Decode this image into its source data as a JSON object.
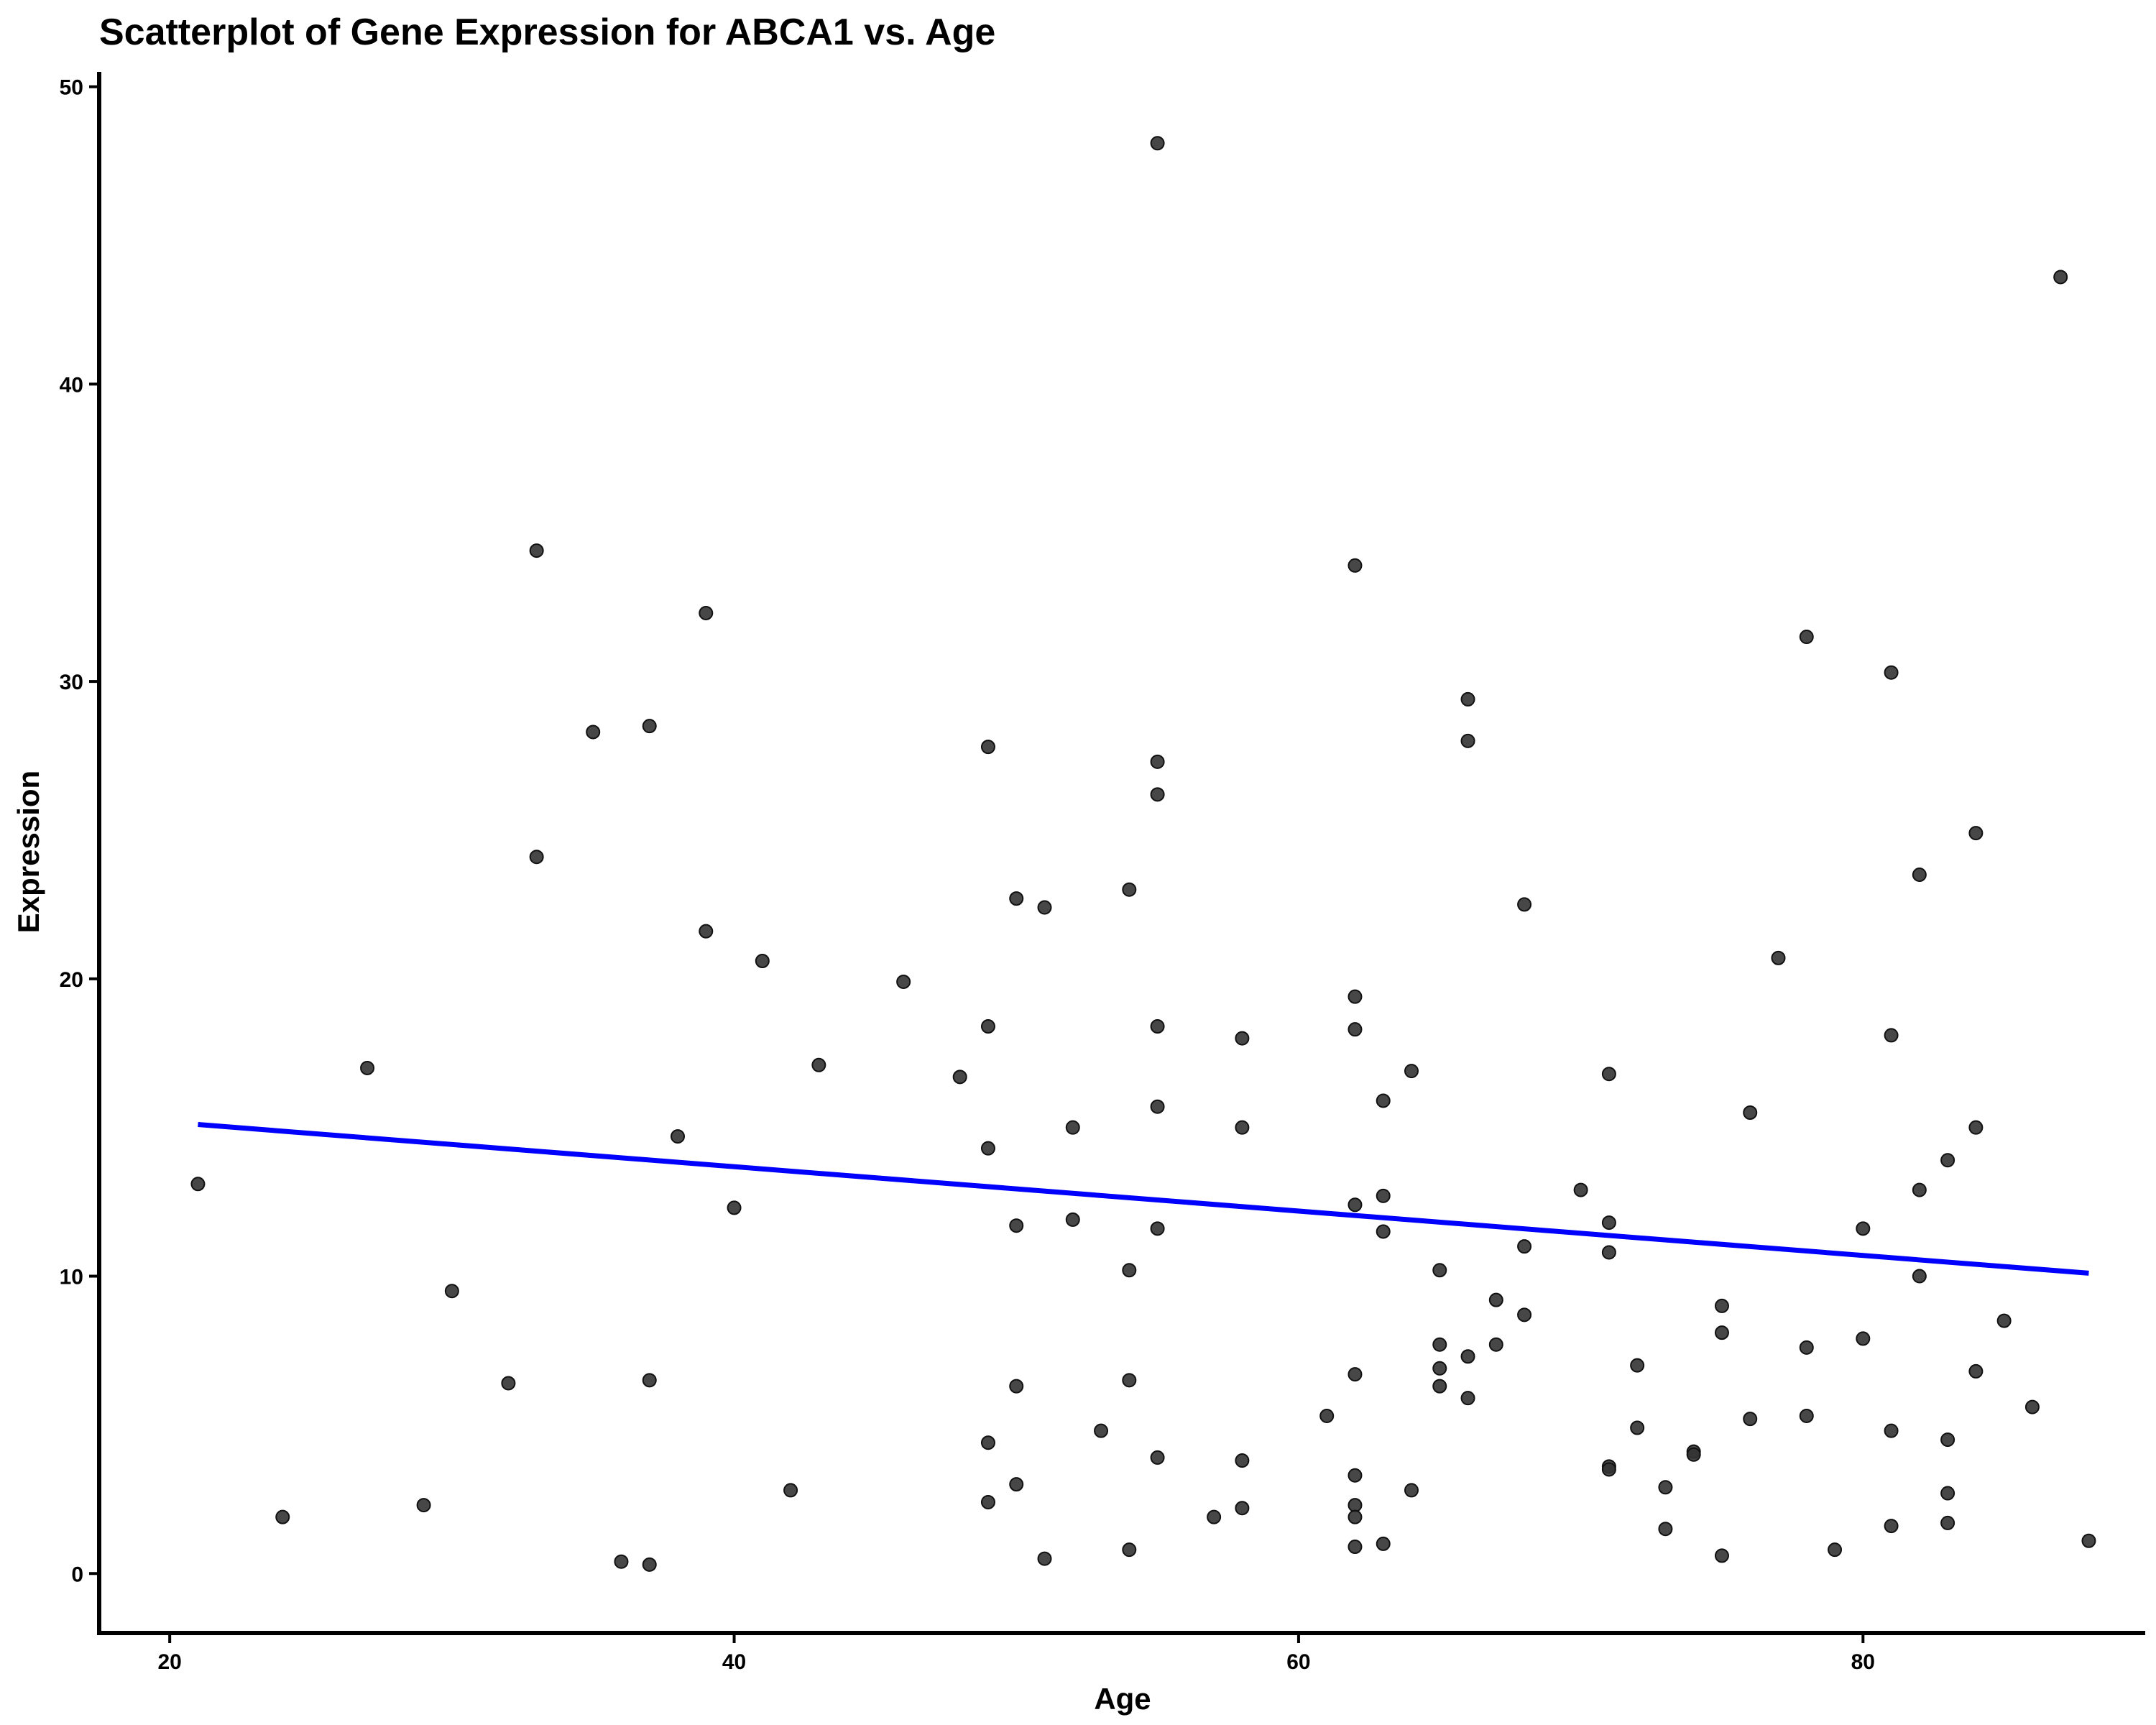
{
  "chart_data": {
    "type": "scatter",
    "title": "Scatterplot of Gene Expression for ABCA1 vs. Age",
    "xlabel": "Age",
    "ylabel": "Expression",
    "xlim": [
      17.5,
      90
    ],
    "ylim": [
      -2,
      50.5
    ],
    "x_ticks": [
      20,
      40,
      60,
      80
    ],
    "y_ticks": [
      0,
      10,
      20,
      30,
      40,
      50
    ],
    "x_tick_labels": [
      "20",
      "40",
      "60",
      "80"
    ],
    "y_tick_labels": [
      "0",
      "10",
      "20",
      "30",
      "40",
      "50"
    ],
    "grid": false,
    "legend": "none",
    "point_color": "#333333",
    "trend_color": "#0000ff",
    "trendline": {
      "x": [
        21,
        88
      ],
      "y": [
        15.1,
        10.1
      ]
    },
    "points": [
      [
        21,
        13.1
      ],
      [
        24,
        1.9
      ],
      [
        27,
        17.0
      ],
      [
        29,
        2.3
      ],
      [
        30,
        9.5
      ],
      [
        32,
        6.4
      ],
      [
        33,
        34.4
      ],
      [
        33,
        24.1
      ],
      [
        35,
        28.3
      ],
      [
        36,
        0.4
      ],
      [
        37,
        28.5
      ],
      [
        37,
        6.5
      ],
      [
        37,
        0.3
      ],
      [
        38,
        14.7
      ],
      [
        39,
        32.3
      ],
      [
        39,
        21.6
      ],
      [
        40,
        12.3
      ],
      [
        41,
        20.6
      ],
      [
        42,
        2.8
      ],
      [
        43,
        17.1
      ],
      [
        46,
        19.9
      ],
      [
        48,
        16.7
      ],
      [
        49,
        27.8
      ],
      [
        49,
        18.4
      ],
      [
        49,
        14.3
      ],
      [
        49,
        4.4
      ],
      [
        49,
        2.4
      ],
      [
        50,
        22.7
      ],
      [
        50,
        11.7
      ],
      [
        50,
        6.3
      ],
      [
        50,
        3.0
      ],
      [
        51,
        22.4
      ],
      [
        51,
        0.5
      ],
      [
        52,
        15.0
      ],
      [
        52,
        11.9
      ],
      [
        53,
        4.8
      ],
      [
        54,
        23.0
      ],
      [
        54,
        10.2
      ],
      [
        54,
        6.5
      ],
      [
        54,
        0.8
      ],
      [
        55,
        48.1
      ],
      [
        55,
        27.3
      ],
      [
        55,
        26.2
      ],
      [
        55,
        18.4
      ],
      [
        55,
        15.7
      ],
      [
        55,
        11.6
      ],
      [
        55,
        3.9
      ],
      [
        57,
        1.9
      ],
      [
        58,
        18.0
      ],
      [
        58,
        15.0
      ],
      [
        58,
        3.8
      ],
      [
        58,
        2.2
      ],
      [
        61,
        5.3
      ],
      [
        62,
        33.9
      ],
      [
        62,
        19.4
      ],
      [
        62,
        18.3
      ],
      [
        62,
        12.4
      ],
      [
        62,
        6.7
      ],
      [
        62,
        3.3
      ],
      [
        62,
        2.3
      ],
      [
        62,
        1.9
      ],
      [
        62,
        0.9
      ],
      [
        63,
        15.9
      ],
      [
        63,
        12.7
      ],
      [
        63,
        11.5
      ],
      [
        63,
        1.0
      ],
      [
        64,
        16.9
      ],
      [
        64,
        2.8
      ],
      [
        65,
        10.2
      ],
      [
        65,
        7.7
      ],
      [
        65,
        6.9
      ],
      [
        65,
        6.3
      ],
      [
        66,
        29.4
      ],
      [
        66,
        28.0
      ],
      [
        66,
        7.3
      ],
      [
        66,
        5.9
      ],
      [
        67,
        9.2
      ],
      [
        67,
        7.7
      ],
      [
        68,
        22.5
      ],
      [
        68,
        11.0
      ],
      [
        68,
        8.7
      ],
      [
        70,
        12.9
      ],
      [
        71,
        16.8
      ],
      [
        71,
        11.8
      ],
      [
        71,
        10.8
      ],
      [
        71,
        3.6
      ],
      [
        71,
        3.5
      ],
      [
        72,
        7.0
      ],
      [
        72,
        4.9
      ],
      [
        73,
        2.9
      ],
      [
        73,
        1.5
      ],
      [
        74,
        4.1
      ],
      [
        74,
        4.0
      ],
      [
        75,
        9.0
      ],
      [
        75,
        8.1
      ],
      [
        75,
        0.6
      ],
      [
        76,
        15.5
      ],
      [
        76,
        5.2
      ],
      [
        77,
        20.7
      ],
      [
        78,
        31.5
      ],
      [
        78,
        7.6
      ],
      [
        78,
        5.3
      ],
      [
        79,
        0.8
      ],
      [
        80,
        11.6
      ],
      [
        80,
        7.9
      ],
      [
        81,
        30.3
      ],
      [
        81,
        18.1
      ],
      [
        81,
        4.8
      ],
      [
        81,
        1.6
      ],
      [
        82,
        23.5
      ],
      [
        82,
        12.9
      ],
      [
        82,
        10.0
      ],
      [
        83,
        13.9
      ],
      [
        83,
        4.5
      ],
      [
        83,
        2.7
      ],
      [
        83,
        1.7
      ],
      [
        84,
        24.9
      ],
      [
        84,
        15.0
      ],
      [
        84,
        6.8
      ],
      [
        85,
        8.5
      ],
      [
        86,
        5.6
      ],
      [
        87,
        43.6
      ],
      [
        88,
        1.1
      ]
    ]
  }
}
